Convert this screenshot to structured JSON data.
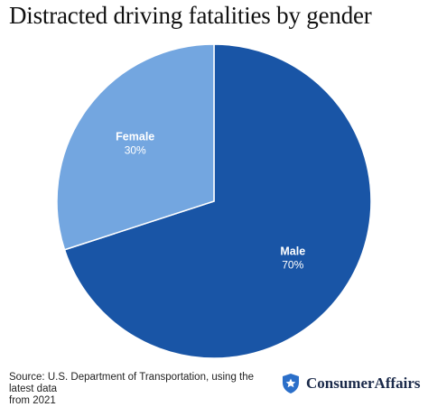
{
  "chart_data": {
    "type": "pie",
    "title": "Distracted driving fatalities by gender",
    "slices": [
      {
        "label": "Male",
        "value": 70,
        "value_label": "70%",
        "color": "#1955a6",
        "text_color": "#ffffff"
      },
      {
        "label": "Female",
        "value": 30,
        "value_label": "30%",
        "color": "#73a6e0",
        "text_color": "#ffffff"
      }
    ],
    "start": "12 o'clock",
    "direction": "clockwise",
    "slice_border_color": "#ffffff"
  },
  "source": {
    "line1": "Source: U.S. Department of Transportation, using the latest data",
    "line2": "from 2021"
  },
  "brand": {
    "name": "ConsumerAffairs",
    "logo_icon": "star-shield-icon",
    "logo_color": "#2b6fc9"
  }
}
